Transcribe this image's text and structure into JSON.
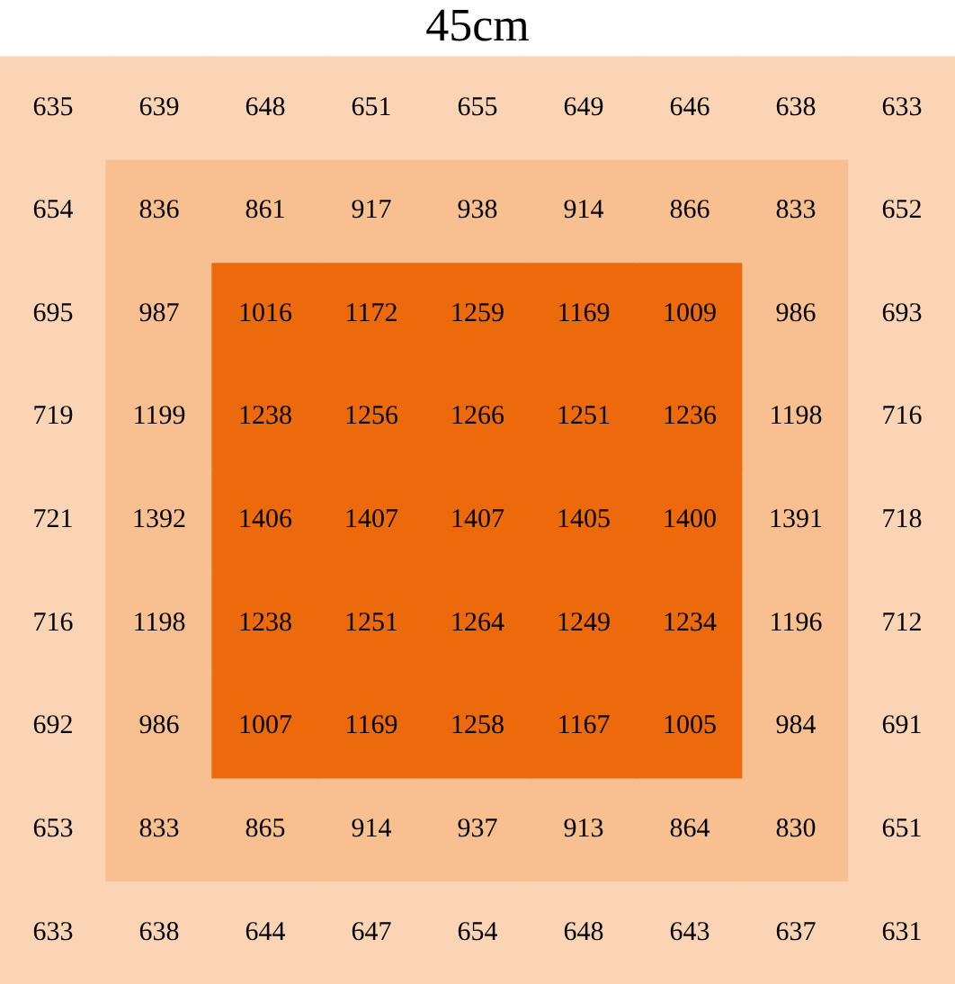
{
  "chart_data": {
    "type": "heatmap",
    "title": "45cm",
    "categories": [
      null,
      null,
      null,
      null,
      null,
      null,
      null,
      null,
      null
    ],
    "y_categories": [
      null,
      null,
      null,
      null,
      null,
      null,
      null,
      null,
      null
    ],
    "cells": [
      [
        635,
        639,
        648,
        651,
        655,
        649,
        646,
        638,
        633
      ],
      [
        654,
        836,
        861,
        917,
        938,
        914,
        866,
        833,
        652
      ],
      [
        695,
        987,
        1016,
        1172,
        1259,
        1169,
        1009,
        986,
        693
      ],
      [
        719,
        1199,
        1238,
        1256,
        1266,
        1251,
        1236,
        1198,
        716
      ],
      [
        721,
        1392,
        1406,
        1407,
        1407,
        1405,
        1400,
        1391,
        718
      ],
      [
        716,
        1198,
        1238,
        1251,
        1264,
        1249,
        1234,
        1196,
        712
      ],
      [
        692,
        986,
        1007,
        1169,
        1258,
        1167,
        1005,
        984,
        691
      ],
      [
        653,
        833,
        865,
        914,
        937,
        913,
        864,
        830,
        651
      ],
      [
        633,
        638,
        644,
        647,
        654,
        648,
        643,
        637,
        631
      ]
    ],
    "colors": [
      [
        "#fad4b4",
        "#fad4b4",
        "#fad4b4",
        "#fad4b4",
        "#fad4b4",
        "#fad4b4",
        "#fad4b4",
        "#fad4b4",
        "#fad4b4"
      ],
      [
        "#fad4b4",
        "#f8bf90",
        "#f8bf90",
        "#f8bf90",
        "#f8bf90",
        "#f8bf90",
        "#f8bf90",
        "#f8bf90",
        "#fad4b4"
      ],
      [
        "#fad4b4",
        "#f8bf90",
        "#ec6a0c",
        "#ec6a0c",
        "#ec6a0c",
        "#ec6a0c",
        "#ec6a0c",
        "#f8bf90",
        "#fad4b4"
      ],
      [
        "#fad4b4",
        "#f8bf90",
        "#ec6a0c",
        "#ec6a0c",
        "#ec6a0c",
        "#ec6a0c",
        "#ec6a0c",
        "#f8bf90",
        "#fad4b4"
      ],
      [
        "#fad4b4",
        "#f8bf90",
        "#ec6a0c",
        "#ec6a0c",
        "#ec6a0c",
        "#ec6a0c",
        "#ec6a0c",
        "#f8bf90",
        "#fad4b4"
      ],
      [
        "#fad4b4",
        "#f8bf90",
        "#ec6a0c",
        "#ec6a0c",
        "#ec6a0c",
        "#ec6a0c",
        "#ec6a0c",
        "#f8bf90",
        "#fad4b4"
      ],
      [
        "#fad4b4",
        "#f8bf90",
        "#ec6a0c",
        "#ec6a0c",
        "#ec6a0c",
        "#ec6a0c",
        "#ec6a0c",
        "#f8bf90",
        "#fad4b4"
      ],
      [
        "#fad4b4",
        "#f8bf90",
        "#f8bf90",
        "#f8bf90",
        "#f8bf90",
        "#f8bf90",
        "#f8bf90",
        "#f8bf90",
        "#fad4b4"
      ],
      [
        "#fad4b4",
        "#fad4b4",
        "#fad4b4",
        "#fad4b4",
        "#fad4b4",
        "#fad4b4",
        "#fad4b4",
        "#fad4b4",
        "#fad4b4"
      ]
    ],
    "data_labels": true
  }
}
